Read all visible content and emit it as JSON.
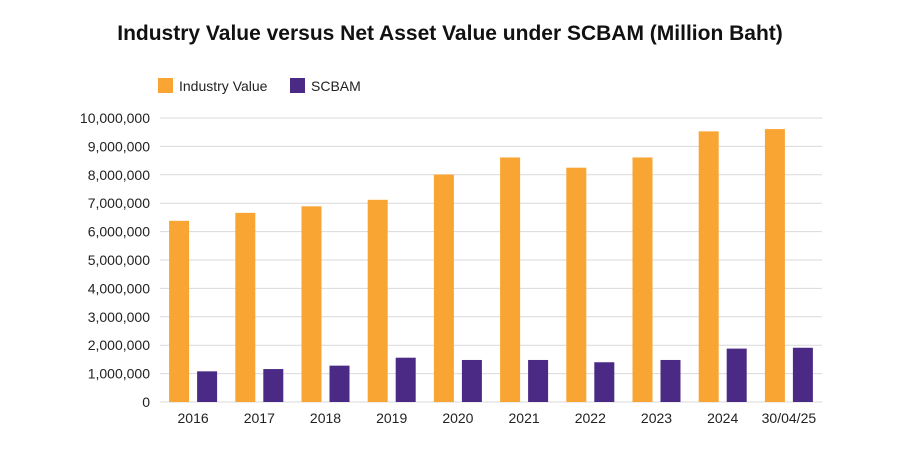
{
  "chart_data": {
    "type": "bar",
    "title": "Industry Value versus Net Asset Value under SCBAM (Million Baht)",
    "xlabel": "",
    "ylabel": "",
    "categories": [
      "2016",
      "2017",
      "2018",
      "2019",
      "2020",
      "2021",
      "2022",
      "2023",
      "2024",
      "30/04/25"
    ],
    "series": [
      {
        "name": "Industry Value",
        "color": "#F9A533",
        "values": [
          6380000,
          6660000,
          6890000,
          7120000,
          8010000,
          8610000,
          8250000,
          8610000,
          9530000,
          9610000
        ]
      },
      {
        "name": "SCBAM",
        "color": "#4B2A86",
        "values": [
          1080000,
          1160000,
          1280000,
          1560000,
          1480000,
          1480000,
          1400000,
          1480000,
          1880000,
          1910000
        ]
      }
    ],
    "ylim": [
      0,
      10000000
    ],
    "yticks": [
      0,
      1000000,
      2000000,
      3000000,
      4000000,
      5000000,
      6000000,
      7000000,
      8000000,
      9000000,
      10000000
    ],
    "ytick_labels": [
      "0",
      "1,000,000",
      "2,000,000",
      "3,000,000",
      "4,000,000",
      "5,000,000",
      "6,000,000",
      "7,000,000",
      "8,000,000",
      "9,000,000",
      "10,000,000"
    ],
    "grid": true,
    "legend": "top-left"
  }
}
